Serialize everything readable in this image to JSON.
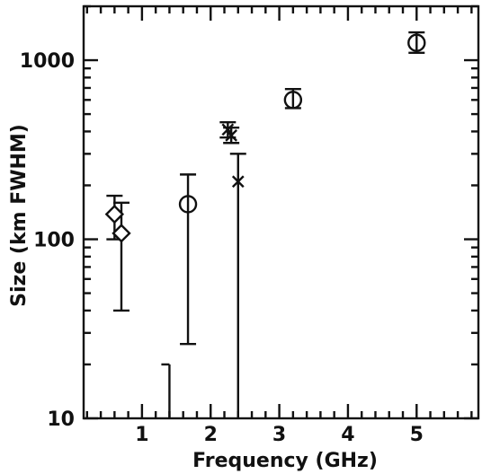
{
  "chart_data": {
    "type": "scatter",
    "xlabel": "Frequency (GHz)",
    "ylabel": "Size (km FWHM)",
    "x_scale": "linear",
    "y_scale": "log",
    "xlim": [
      0.15,
      5.9
    ],
    "ylim": [
      10,
      2000
    ],
    "x_ticks": [
      {
        "value": 1,
        "label": "1"
      },
      {
        "value": 2,
        "label": "2"
      },
      {
        "value": 3,
        "label": "3"
      },
      {
        "value": 4,
        "label": "4"
      },
      {
        "value": 5,
        "label": "5"
      }
    ],
    "y_ticks": [
      {
        "value": 10,
        "label": "10"
      },
      {
        "value": 100,
        "label": "100"
      },
      {
        "value": 1000,
        "label": "1000"
      }
    ],
    "grid": false,
    "series": [
      {
        "marker": "diamond",
        "points": [
          {
            "x": 0.6,
            "y": 138,
            "err_low": 100,
            "err_high": 175
          },
          {
            "x": 0.7,
            "y": 108,
            "err_low": 40,
            "err_high": 160
          }
        ]
      },
      {
        "marker": "circle",
        "points": [
          {
            "x": 1.67,
            "y": 157,
            "err_low": 26,
            "err_high": 230
          },
          {
            "x": 3.2,
            "y": 600,
            "err_low": 540,
            "err_high": 690
          },
          {
            "x": 5.0,
            "y": 1250,
            "err_low": 1100,
            "err_high": 1430
          }
        ]
      },
      {
        "marker": "x",
        "points": [
          {
            "x": 2.25,
            "y": 410,
            "err_low": 370,
            "err_high": 450
          },
          {
            "x": 2.3,
            "y": 380,
            "err_low": 345,
            "err_high": 420
          },
          {
            "x": 2.4,
            "y": 210,
            "err_low": 10,
            "err_high": 300
          }
        ]
      },
      {
        "marker": "upper-limit",
        "points": [
          {
            "x": 1.4,
            "y": 20,
            "err_low": 10,
            "err_high": 20
          }
        ]
      }
    ]
  }
}
